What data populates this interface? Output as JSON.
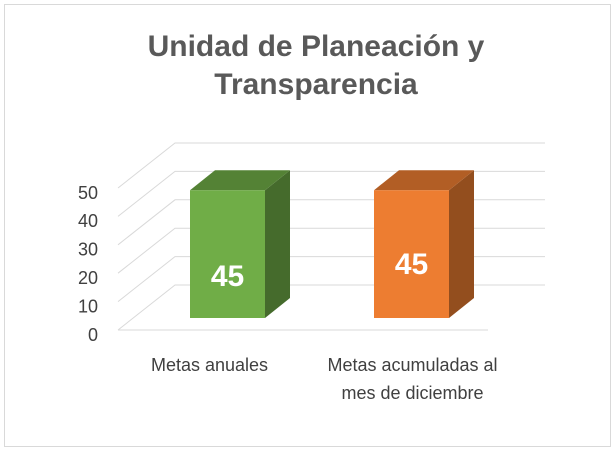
{
  "chart_data": {
    "type": "bar",
    "title": "Unidad de Planeación y Transparencia",
    "categories": [
      "Metas anuales",
      "Metas acumuladas al mes de diciembre"
    ],
    "values": [
      45,
      45
    ],
    "colors": [
      "#70ad47",
      "#ed7d31"
    ],
    "ylim": [
      0,
      50
    ],
    "yticks": [
      0,
      10,
      20,
      30,
      40,
      50
    ],
    "grid": true
  }
}
